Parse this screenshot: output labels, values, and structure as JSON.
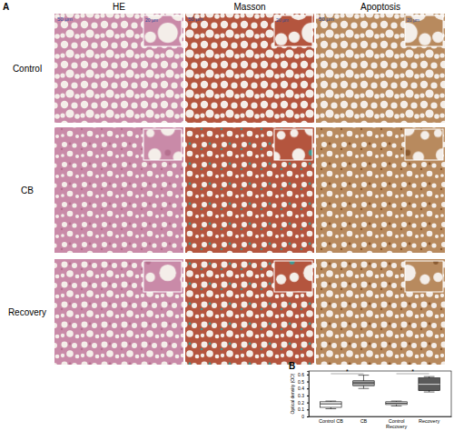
{
  "panel_a": {
    "label": "A",
    "columns": [
      "HE",
      "Masson",
      "Apoptosis"
    ],
    "rows": [
      "Control",
      "CB",
      "Recovery"
    ],
    "scale_bar": "50 μm",
    "inset_scale_bar": "20 μm"
  },
  "chart_data": {
    "type": "box",
    "panel_label": "B",
    "ylabel": "Optical density (OD)",
    "categories": [
      "Control CB",
      "CB",
      "Control Recovery",
      "Recovery"
    ],
    "boxes": [
      {
        "min": 0.11,
        "q1": 0.13,
        "median": 0.18,
        "q3": 0.21,
        "max": 0.22
      },
      {
        "min": 0.4,
        "q1": 0.44,
        "median": 0.48,
        "q3": 0.51,
        "max": 0.59
      },
      {
        "min": 0.15,
        "q1": 0.17,
        "median": 0.19,
        "q3": 0.21,
        "max": 0.22
      },
      {
        "min": 0.35,
        "q1": 0.37,
        "median": 0.46,
        "q3": 0.55,
        "max": 0.57
      }
    ],
    "colors": [
      "#ffffff",
      "#a6a6a6",
      "#ffffff",
      "#5a5a5a"
    ],
    "ylim": [
      0,
      0.65
    ],
    "yticks": [
      0,
      0.1,
      0.2,
      0.3,
      0.4,
      0.5,
      0.6
    ],
    "significance": [
      {
        "text": "*",
        "from": 0,
        "to": 1
      },
      {
        "text": "*",
        "from": 2,
        "to": 3
      }
    ]
  }
}
